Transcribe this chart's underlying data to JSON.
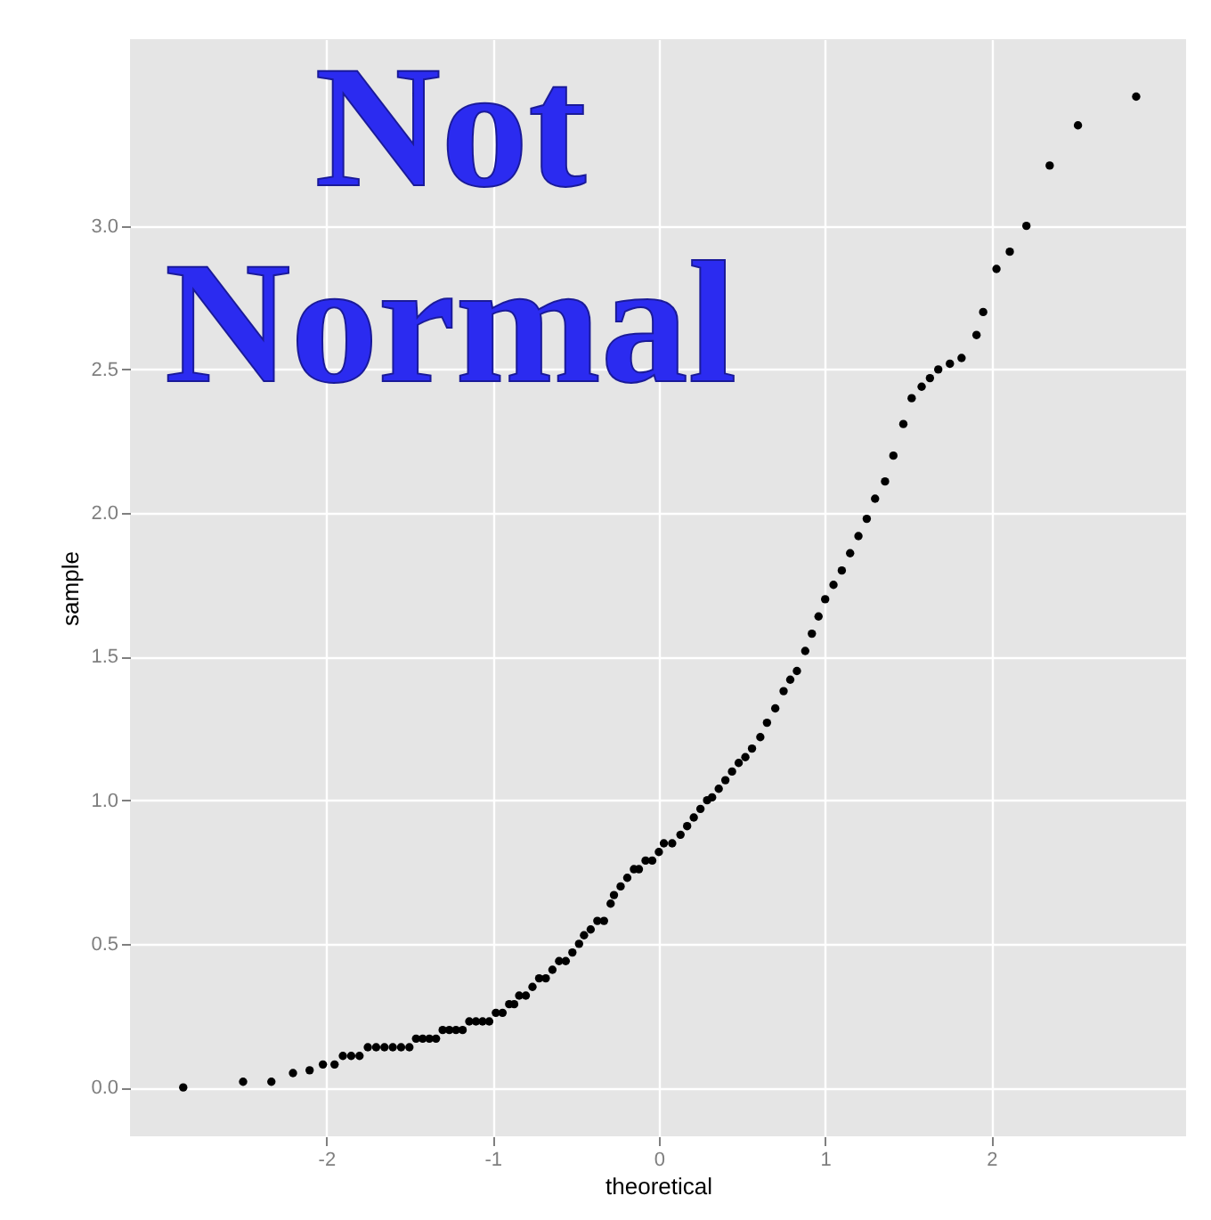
{
  "chart_data": {
    "type": "scatter",
    "xlabel": "theoretical",
    "ylabel": "sample",
    "annotations": [
      "Not Normal"
    ],
    "x": [
      -2.86,
      -2.5,
      -2.33,
      -2.2,
      -2.1,
      -2.02,
      -1.95,
      -1.9,
      -1.85,
      -1.8,
      -1.75,
      -1.7,
      -1.65,
      -1.6,
      -1.55,
      -1.5,
      -1.46,
      -1.42,
      -1.38,
      -1.34,
      -1.3,
      -1.26,
      -1.22,
      -1.18,
      -1.14,
      -1.1,
      -1.06,
      -1.02,
      -0.98,
      -0.94,
      -0.9,
      -0.87,
      -0.84,
      -0.8,
      -0.76,
      -0.72,
      -0.68,
      -0.64,
      -0.6,
      -0.56,
      -0.52,
      -0.48,
      -0.45,
      -0.41,
      -0.37,
      -0.33,
      -0.29,
      -0.27,
      -0.23,
      -0.19,
      -0.15,
      -0.12,
      -0.08,
      -0.04,
      0.0,
      0.03,
      0.08,
      0.13,
      0.17,
      0.21,
      0.25,
      0.29,
      0.32,
      0.36,
      0.4,
      0.44,
      0.48,
      0.52,
      0.56,
      0.61,
      0.65,
      0.7,
      0.75,
      0.79,
      0.83,
      0.88,
      0.92,
      0.96,
      1.0,
      1.05,
      1.1,
      1.15,
      1.2,
      1.25,
      1.3,
      1.36,
      1.41,
      1.47,
      1.52,
      1.58,
      1.63,
      1.68,
      1.75,
      1.82,
      1.91,
      1.95,
      2.03,
      2.11,
      2.21,
      2.35,
      2.52,
      2.87
    ],
    "values": [
      0.0,
      0.02,
      0.02,
      0.05,
      0.06,
      0.08,
      0.08,
      0.11,
      0.11,
      0.11,
      0.14,
      0.14,
      0.14,
      0.14,
      0.14,
      0.14,
      0.17,
      0.17,
      0.17,
      0.17,
      0.2,
      0.2,
      0.2,
      0.2,
      0.23,
      0.23,
      0.23,
      0.23,
      0.26,
      0.26,
      0.29,
      0.29,
      0.32,
      0.32,
      0.35,
      0.38,
      0.38,
      0.41,
      0.44,
      0.44,
      0.47,
      0.5,
      0.53,
      0.55,
      0.58,
      0.58,
      0.64,
      0.67,
      0.7,
      0.73,
      0.76,
      0.76,
      0.79,
      0.79,
      0.82,
      0.85,
      0.85,
      0.88,
      0.91,
      0.94,
      0.97,
      1.0,
      1.01,
      1.04,
      1.07,
      1.1,
      1.13,
      1.15,
      1.18,
      1.22,
      1.27,
      1.32,
      1.38,
      1.42,
      1.45,
      1.52,
      1.58,
      1.64,
      1.7,
      1.75,
      1.8,
      1.86,
      1.92,
      1.98,
      2.05,
      2.11,
      2.2,
      2.31,
      2.4,
      2.44,
      2.47,
      2.5,
      2.52,
      2.54,
      2.62,
      2.7,
      2.85,
      2.91,
      3.0,
      3.21,
      3.35,
      3.45
    ],
    "color": "#000000",
    "marker": "circle",
    "xlim": [
      -3.18,
      3.17
    ],
    "xticks": [
      -2,
      -1,
      0,
      1,
      2
    ],
    "ylim": [
      -0.17,
      3.65
    ],
    "yticks": [
      {
        "value": 0,
        "label": "0.0"
      },
      0.5,
      {
        "value": 1,
        "label": "1.0"
      },
      1.5,
      {
        "value": 2,
        "label": "2.0"
      },
      2.5,
      {
        "value": 3,
        "label": "3.0"
      }
    ],
    "grid": true
  }
}
